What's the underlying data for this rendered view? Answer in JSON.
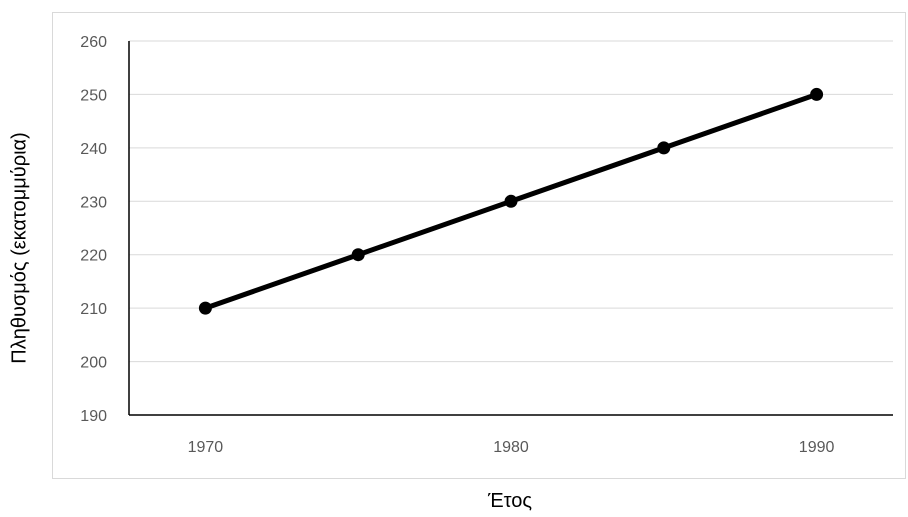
{
  "chart_data": {
    "type": "line",
    "title": "",
    "xlabel": "Έτος",
    "ylabel": "Πληθυσμός (εκατομμύρια)",
    "x": [
      1970,
      1975,
      1980,
      1985,
      1990
    ],
    "series": [
      {
        "values": [
          210,
          220,
          230,
          240,
          250
        ]
      }
    ],
    "xticks": [
      1970,
      1980,
      1990
    ],
    "yticks": [
      190,
      200,
      210,
      220,
      230,
      240,
      250,
      260
    ],
    "xlim": [
      1967.5,
      1992.5
    ],
    "ylim": [
      190,
      260
    ],
    "grid": "horizontal",
    "legend": "none",
    "colors": {
      "line": "#000000",
      "grid": "#d9d9d9",
      "axis": "#000000",
      "tick_text": "#595959"
    }
  }
}
